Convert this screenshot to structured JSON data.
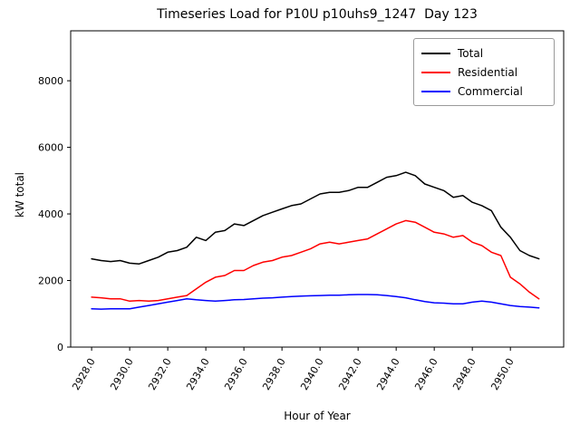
{
  "chart_data": {
    "type": "line",
    "title": "Timeseries Load for P10U p10uhs9_1247  Day 123",
    "xlabel": "Hour of Year",
    "ylabel": "kW total",
    "xlim": [
      2926.9,
      2952.8
    ],
    "ylim": [
      0,
      9500
    ],
    "xticks": [
      2928,
      2930,
      2932,
      2934,
      2936,
      2938,
      2940,
      2942,
      2944,
      2946,
      2948,
      2950
    ],
    "xtick_labels": [
      "2928.0",
      "2930.0",
      "2932.0",
      "2934.0",
      "2936.0",
      "2938.0",
      "2940.0",
      "2942.0",
      "2944.0",
      "2946.0",
      "2948.0",
      "2950.0"
    ],
    "yticks": [
      0,
      2000,
      4000,
      6000,
      8000
    ],
    "grid": false,
    "legend_position": "upper right",
    "x": [
      2928.0,
      2928.5,
      2929.0,
      2929.5,
      2930.0,
      2930.5,
      2931.0,
      2931.5,
      2932.0,
      2932.5,
      2933.0,
      2933.5,
      2934.0,
      2934.5,
      2935.0,
      2935.5,
      2936.0,
      2936.5,
      2937.0,
      2937.5,
      2938.0,
      2938.5,
      2939.0,
      2939.5,
      2940.0,
      2940.5,
      2941.0,
      2941.5,
      2942.0,
      2942.5,
      2943.0,
      2943.5,
      2944.0,
      2944.5,
      2945.0,
      2945.5,
      2946.0,
      2946.5,
      2947.0,
      2947.5,
      2948.0,
      2948.5,
      2949.0,
      2949.5,
      2950.0,
      2950.5,
      2951.0,
      2951.5
    ],
    "series": [
      {
        "name": "Total",
        "color": "#000000",
        "values": [
          2650,
          2600,
          2570,
          2600,
          2520,
          2500,
          2600,
          2700,
          2850,
          2900,
          3000,
          3300,
          3200,
          3450,
          3500,
          3700,
          3650,
          3800,
          3950,
          4050,
          4150,
          4250,
          4300,
          4450,
          4600,
          4650,
          4650,
          4700,
          4800,
          4800,
          4950,
          5100,
          5150,
          5250,
          5150,
          4900,
          4800,
          4700,
          4500,
          4550,
          4350,
          4250,
          4100,
          3600,
          3300,
          2900,
          2750,
          2650
        ]
      },
      {
        "name": "Residential",
        "color": "#ff0000",
        "values": [
          1500,
          1480,
          1450,
          1450,
          1380,
          1400,
          1380,
          1400,
          1450,
          1500,
          1550,
          1750,
          1950,
          2100,
          2150,
          2300,
          2300,
          2450,
          2550,
          2600,
          2700,
          2750,
          2850,
          2950,
          3100,
          3150,
          3100,
          3150,
          3200,
          3250,
          3400,
          3550,
          3700,
          3800,
          3750,
          3600,
          3450,
          3400,
          3300,
          3350,
          3150,
          3050,
          2850,
          2750,
          2100,
          1900,
          1650,
          1450
        ]
      },
      {
        "name": "Commercial",
        "color": "#0000ff",
        "values": [
          1150,
          1140,
          1150,
          1150,
          1150,
          1200,
          1250,
          1300,
          1350,
          1400,
          1450,
          1420,
          1400,
          1380,
          1400,
          1420,
          1430,
          1450,
          1470,
          1480,
          1500,
          1520,
          1530,
          1540,
          1550,
          1560,
          1560,
          1570,
          1580,
          1580,
          1570,
          1550,
          1520,
          1480,
          1420,
          1370,
          1330,
          1320,
          1300,
          1300,
          1350,
          1380,
          1350,
          1300,
          1250,
          1220,
          1200,
          1180
        ]
      }
    ]
  }
}
